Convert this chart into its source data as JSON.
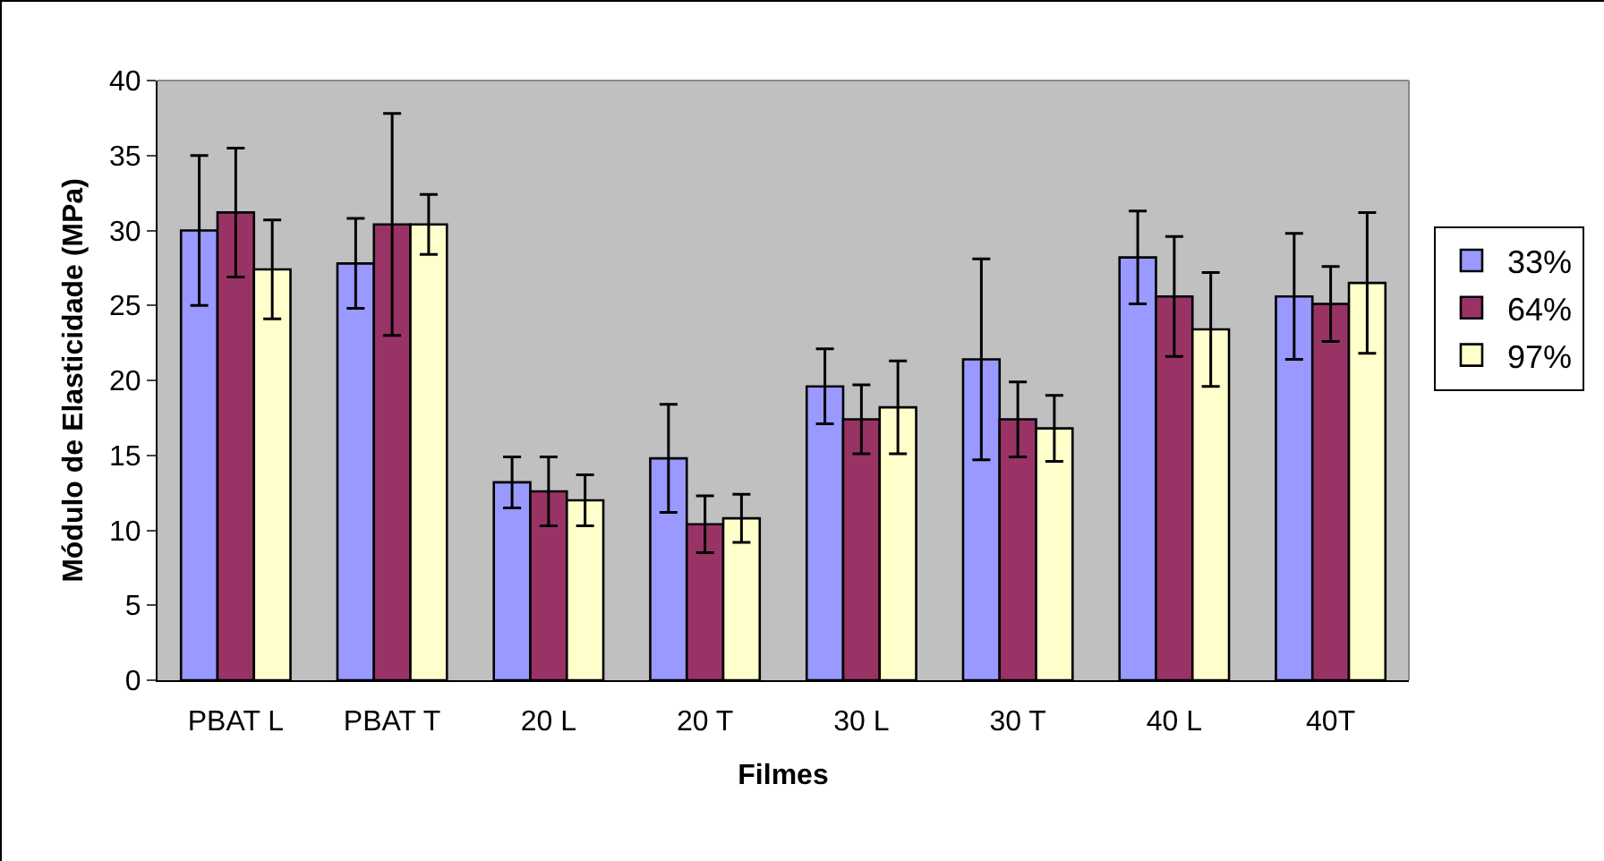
{
  "chart_data": {
    "type": "bar",
    "xlabel": "Filmes",
    "ylabel": "Módulo de Elasticidade (MPa)",
    "categories": [
      "PBAT L",
      "PBAT T",
      "20 L",
      "20 T",
      "30 L",
      "30 T",
      "40 L",
      "40T"
    ],
    "series": [
      {
        "name": "33%",
        "color": "#9999ff",
        "values": [
          30,
          27.8,
          13.2,
          14.8,
          19.6,
          21.4,
          28.2,
          25.6
        ],
        "errors": [
          5,
          3,
          1.7,
          3.6,
          2.5,
          6.7,
          3.1,
          4.2
        ]
      },
      {
        "name": "64%",
        "color": "#993366",
        "values": [
          31.2,
          30.4,
          12.6,
          10.4,
          17.4,
          17.4,
          25.6,
          25.1
        ],
        "errors": [
          4.3,
          7.4,
          2.3,
          1.9,
          2.3,
          2.5,
          4,
          2.5
        ]
      },
      {
        "name": "97%",
        "color": "#ffffcc",
        "values": [
          27.4,
          30.4,
          12,
          10.8,
          18.2,
          16.8,
          23.4,
          26.5
        ],
        "errors": [
          3.3,
          2,
          1.7,
          1.6,
          3.1,
          2.2,
          3.8,
          4.7
        ]
      }
    ],
    "ylim": [
      0,
      40
    ],
    "yticks": [
      0,
      5,
      10,
      15,
      20,
      25,
      30,
      35,
      40
    ],
    "grid": false,
    "legend": "right"
  }
}
